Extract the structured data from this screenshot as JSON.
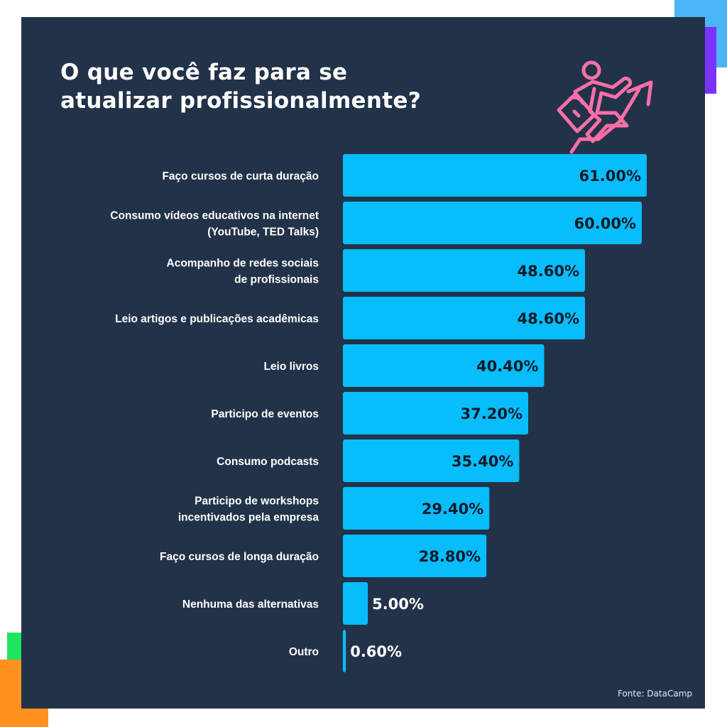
{
  "title": {
    "line1": "O que você faz para se",
    "line2": "atualizar profissionalmente?"
  },
  "source": "Fonte: DataCamp",
  "colors": {
    "background": "#223249",
    "bar": "#07bdfb",
    "icon": "#ff6fa8",
    "deco_blue": "#4ab6f8",
    "deco_purple": "#7a33ff",
    "deco_green": "#1de65e",
    "deco_orange": "#ff9120"
  },
  "chart_data": {
    "type": "bar",
    "orientation": "horizontal",
    "title": "O que você faz para se atualizar profissionalmente?",
    "xlabel": "",
    "ylabel": "",
    "xlim": [
      0,
      61
    ],
    "grid": false,
    "categories": [
      [
        "Faço cursos de curta duração"
      ],
      [
        "Consumo vídeos educativos na internet",
        "(YouTube, TED Talks)"
      ],
      [
        "Acompanho de redes sociais",
        "de profissionais"
      ],
      [
        "Leio artigos e publicações acadêmicas"
      ],
      [
        "Leio livros"
      ],
      [
        "Participo de eventos"
      ],
      [
        "Consumo podcasts"
      ],
      [
        "Participo de workshops",
        "incentivados pela empresa"
      ],
      [
        "Faço cursos de longa duração"
      ],
      [
        "Nenhuma das alternativas"
      ],
      [
        "Outro"
      ]
    ],
    "values": [
      61.0,
      60.0,
      48.6,
      48.6,
      40.4,
      37.2,
      35.4,
      29.4,
      28.8,
      5.0,
      0.6
    ],
    "value_labels": [
      "61.00%",
      "60.00%",
      "48.60%",
      "48.60%",
      "40.40%",
      "37.20%",
      "35.40%",
      "29.40%",
      "28.80%",
      "5.00%",
      "0.60%"
    ]
  }
}
